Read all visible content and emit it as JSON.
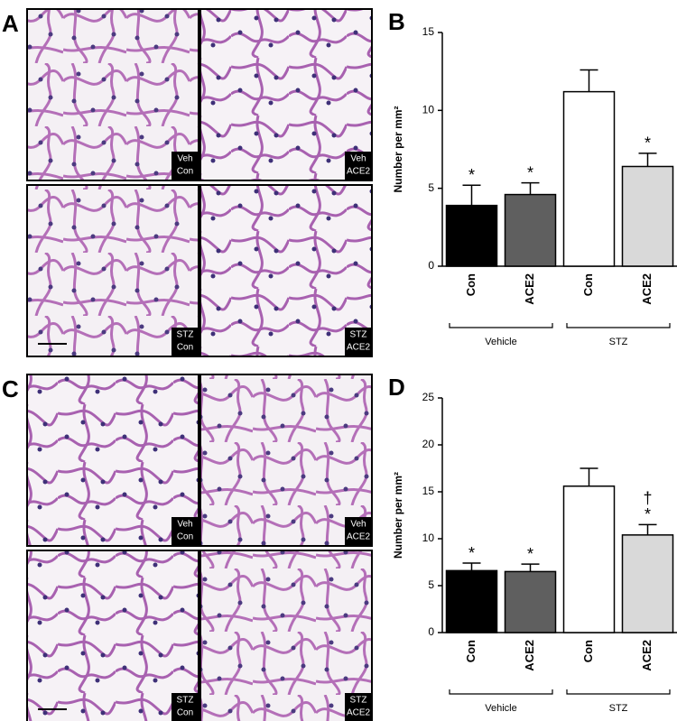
{
  "image_panels": [
    {
      "letter": "A",
      "labels": [
        [
          "Veh",
          "Con"
        ],
        [
          "Veh",
          "ACE2"
        ],
        [
          "STZ",
          "Con"
        ],
        [
          "STZ",
          "ACE2"
        ]
      ]
    },
    {
      "letter": "C",
      "labels": [
        [
          "Veh",
          "Con"
        ],
        [
          "Veh",
          "ACE2"
        ],
        [
          "STZ",
          "Con"
        ],
        [
          "STZ",
          "ACE2"
        ]
      ]
    }
  ],
  "chart_data": [
    {
      "type": "bar",
      "letter": "B",
      "y_label": "Number per mm²",
      "categories": [
        "Con",
        "ACE2",
        "Con",
        "ACE2"
      ],
      "groups": [
        "Vehicle",
        "STZ"
      ],
      "values": [
        3.9,
        4.6,
        11.2,
        6.4
      ],
      "errors": [
        1.3,
        0.75,
        1.4,
        0.85
      ],
      "colors": [
        "#000000",
        "#5f5f5f",
        "#ffffff",
        "#d9d9d9"
      ],
      "annotations": [
        [
          "*"
        ],
        [
          "*"
        ],
        null,
        [
          "*"
        ]
      ],
      "ylim": [
        0,
        15
      ],
      "yticks": [
        0,
        5,
        10,
        15
      ]
    },
    {
      "type": "bar",
      "letter": "D",
      "y_label": "Number per mm²",
      "categories": [
        "Con",
        "ACE2",
        "Con",
        "ACE2"
      ],
      "groups": [
        "Vehicle",
        "STZ"
      ],
      "values": [
        6.6,
        6.5,
        15.6,
        10.4
      ],
      "errors": [
        0.8,
        0.8,
        1.9,
        1.1
      ],
      "colors": [
        "#000000",
        "#5f5f5f",
        "#ffffff",
        "#d9d9d9"
      ],
      "annotations": [
        [
          "*"
        ],
        [
          "*"
        ],
        null,
        [
          "†",
          "*"
        ]
      ],
      "ylim": [
        0,
        25
      ],
      "yticks": [
        0,
        5,
        10,
        15,
        20,
        25
      ]
    }
  ]
}
